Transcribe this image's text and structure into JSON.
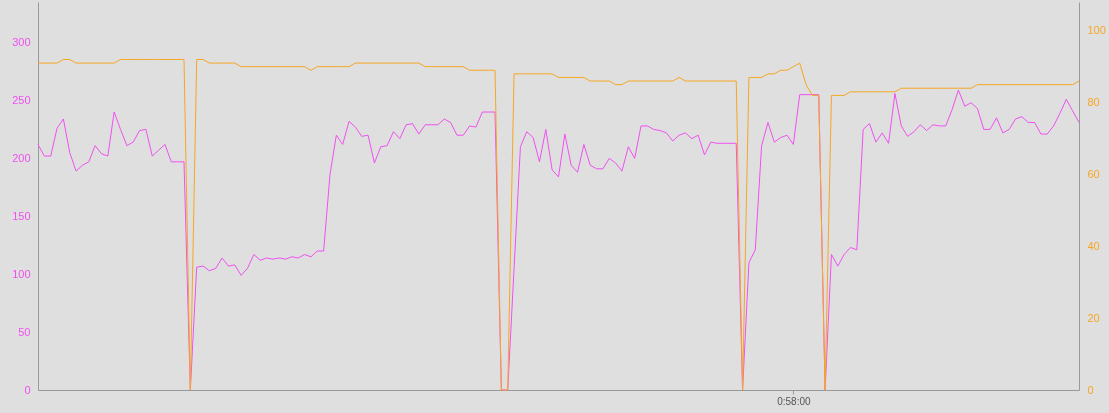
{
  "chart_data": {
    "type": "line",
    "categories": [
      null,
      null,
      null,
      null,
      null,
      null,
      null,
      null,
      null,
      null,
      null,
      null,
      null,
      null,
      null,
      null,
      null,
      null,
      null,
      null,
      null,
      null,
      null,
      null,
      null,
      null,
      null,
      null,
      null,
      null,
      null,
      null,
      null,
      null,
      null,
      null,
      null,
      null,
      null,
      null,
      null,
      null,
      null,
      null,
      null,
      null,
      null,
      null,
      null,
      null,
      null,
      null,
      null,
      null,
      null,
      null,
      null,
      null,
      null,
      null,
      null,
      null,
      null,
      null,
      null,
      null,
      null,
      null,
      null,
      null,
      null,
      null,
      null,
      null,
      null,
      null,
      null,
      null,
      null,
      null,
      null,
      null,
      null,
      null,
      null,
      null,
      null,
      null,
      null,
      null,
      null,
      null,
      null,
      null,
      null,
      null,
      null,
      null,
      null,
      null,
      null,
      null,
      null,
      null,
      null,
      null,
      null,
      null,
      null,
      null,
      null,
      null,
      null,
      null,
      null,
      null,
      null,
      null,
      null,
      "0:58:00",
      null,
      null,
      null,
      null,
      null,
      null,
      null,
      null,
      null,
      null,
      null,
      null,
      null,
      null,
      null,
      null,
      null,
      null,
      null,
      null,
      null,
      null,
      null,
      null,
      null,
      null,
      null,
      null,
      null,
      null,
      null,
      null,
      null,
      null,
      null,
      null,
      null,
      null,
      null,
      null,
      null,
      null,
      null,
      null,
      null
    ],
    "series": [
      {
        "color": "#f050f0",
        "values": [
          212,
          202,
          202,
          226,
          234,
          205,
          189,
          194,
          197,
          211,
          204,
          202,
          240,
          225,
          211,
          214,
          224,
          225,
          202,
          207,
          212,
          197,
          197,
          197,
          0,
          106,
          107,
          103,
          105,
          114,
          107,
          108,
          99,
          105,
          117,
          112,
          114,
          113,
          114,
          113,
          115,
          114,
          117,
          115,
          120,
          120,
          186,
          220,
          212,
          232,
          227,
          219,
          220,
          196,
          210,
          211,
          223,
          217,
          229,
          230,
          221,
          229,
          229,
          229,
          234,
          231,
          220,
          220,
          228,
          227,
          240,
          240,
          240,
          0,
          0,
          105,
          210,
          223,
          218,
          197,
          225,
          190,
          184,
          221,
          194,
          188,
          212,
          194,
          191,
          191,
          200,
          196,
          189,
          210,
          200,
          228,
          228,
          225,
          224,
          222,
          215,
          220,
          222,
          217,
          220,
          203,
          214,
          213,
          213,
          213,
          213,
          0,
          110,
          121,
          211,
          231,
          214,
          218,
          220,
          212,
          255,
          255,
          255,
          255,
          0,
          117,
          107,
          117,
          123,
          121,
          225,
          230,
          214,
          222,
          213,
          256,
          228,
          219,
          223,
          229,
          224,
          229,
          228,
          228,
          242,
          259,
          245,
          248,
          243,
          225,
          225,
          235,
          222,
          225,
          234,
          236,
          231,
          231,
          221,
          221,
          228,
          239,
          251,
          241,
          231
        ]
      },
      {
        "color": "#f5a623",
        "axis": "y2",
        "values": [
          91,
          91,
          91,
          91,
          92,
          92,
          91,
          91,
          91,
          91,
          91,
          91,
          91,
          92,
          92,
          92,
          92,
          92,
          92,
          92,
          92,
          92,
          92,
          92,
          0,
          92,
          92,
          91,
          91,
          91,
          91,
          91,
          90,
          90,
          90,
          90,
          90,
          90,
          90,
          90,
          90,
          90,
          90,
          89,
          90,
          90,
          90,
          90,
          90,
          90,
          91,
          91,
          91,
          91,
          91,
          91,
          91,
          91,
          91,
          91,
          91,
          90,
          90,
          90,
          90,
          90,
          90,
          90,
          89,
          89,
          89,
          89,
          89,
          0,
          0,
          88,
          88,
          88,
          88,
          88,
          88,
          88,
          87,
          87,
          87,
          87,
          87,
          86,
          86,
          86,
          86,
          85,
          85,
          86,
          86,
          86,
          86,
          86,
          86,
          86,
          86,
          87,
          86,
          86,
          86,
          86,
          86,
          86,
          86,
          86,
          86,
          0,
          87,
          87,
          87,
          88,
          88,
          89,
          89,
          90,
          91,
          85,
          82,
          82,
          0,
          82,
          82,
          82,
          83,
          83,
          83,
          83,
          83,
          83,
          83,
          83,
          84,
          84,
          84,
          84,
          84,
          84,
          84,
          84,
          84,
          84,
          84,
          84,
          85,
          85,
          85,
          85,
          85,
          85,
          85,
          85,
          85,
          85,
          85,
          85,
          85,
          85,
          85,
          85,
          86
        ]
      }
    ],
    "ylim": [
      0,
      335
    ],
    "yticks": [
      0,
      50,
      100,
      150,
      200,
      250,
      300
    ],
    "y2lim": [
      0,
      108
    ],
    "y2ticks": [
      0,
      20,
      40,
      60,
      80,
      100
    ]
  }
}
